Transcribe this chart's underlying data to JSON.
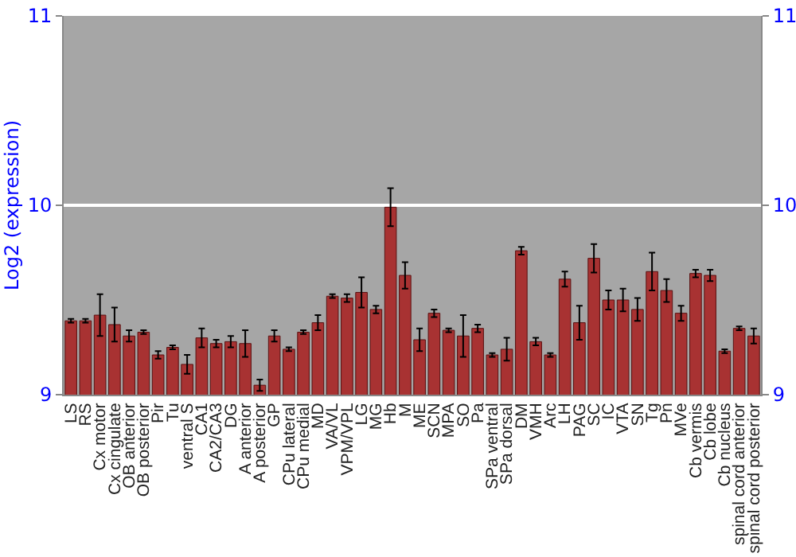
{
  "chart_data": {
    "type": "bar",
    "ylabel": "Log2 (expression)",
    "categories": [
      "LS",
      "RS",
      "Cx motor",
      "Cx cingulate",
      "OB anterior",
      "OB posterior",
      "Pir",
      "Tu",
      "ventral S",
      "CA1",
      "CA2/CA3",
      "DG",
      "A anterior",
      "A posterior",
      "GP",
      "CPu lateral",
      "CPu medial",
      "MD",
      "VA/VL",
      "VPM/VPL",
      "LG",
      "MG",
      "Hb",
      "M",
      "ME",
      "SCN",
      "MPA",
      "SO",
      "Pa",
      "SPa ventral",
      "SPa dorsal",
      "DM",
      "VMH",
      "Arc",
      "LH",
      "PAG",
      "SC",
      "IC",
      "VTA",
      "SN",
      "Tg",
      "Pn",
      "MVe",
      "Cb vermis",
      "Cb lobe",
      "Cb nucleus",
      "spinal cord anterior",
      "spinal cord posterior"
    ],
    "values": [
      9.39,
      9.39,
      9.42,
      9.37,
      9.31,
      9.33,
      9.21,
      9.25,
      9.16,
      9.3,
      9.27,
      9.28,
      9.27,
      9.05,
      9.31,
      9.24,
      9.33,
      9.38,
      9.52,
      9.51,
      9.54,
      9.45,
      9.99,
      9.63,
      9.29,
      9.43,
      9.34,
      9.31,
      9.35,
      9.21,
      9.24,
      9.76,
      9.28,
      9.21,
      9.61,
      9.38,
      9.72,
      9.5,
      9.5,
      9.45,
      9.65,
      9.55,
      9.43,
      9.64,
      9.63,
      9.23,
      9.35,
      9.31
    ],
    "errors": [
      0.01,
      0.01,
      0.11,
      0.09,
      0.03,
      0.01,
      0.02,
      0.01,
      0.05,
      0.05,
      0.02,
      0.03,
      0.07,
      0.03,
      0.03,
      0.01,
      0.01,
      0.04,
      0.01,
      0.02,
      0.08,
      0.02,
      0.1,
      0.07,
      0.06,
      0.02,
      0.01,
      0.11,
      0.02,
      0.01,
      0.06,
      0.02,
      0.02,
      0.01,
      0.04,
      0.09,
      0.075,
      0.05,
      0.06,
      0.06,
      0.1,
      0.06,
      0.04,
      0.02,
      0.03,
      0.01,
      0.01,
      0.04
    ],
    "color": "#a83232",
    "ylim": [
      9,
      11
    ],
    "yticks": [
      9,
      10,
      11
    ],
    "y2lim": [
      9,
      11
    ],
    "y2ticks": [
      9,
      10,
      11
    ],
    "grid": "y"
  }
}
